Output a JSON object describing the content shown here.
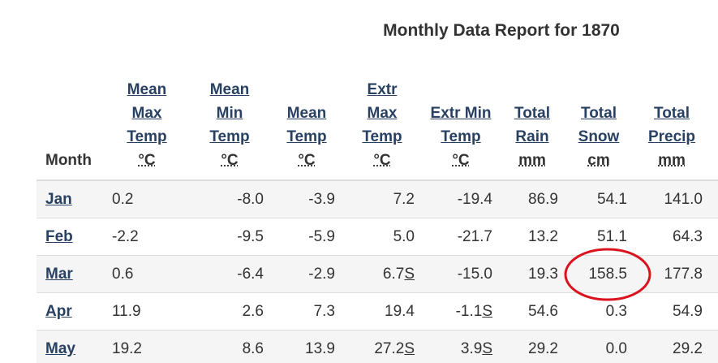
{
  "title": "Monthly Data Report for 1870",
  "table": {
    "headers": [
      {
        "label": "Month"
      },
      {
        "label": "Mean Max Temp",
        "unit": "°C"
      },
      {
        "label": "Mean Min Temp",
        "unit": "°C"
      },
      {
        "label": "Mean Temp",
        "unit": "°C"
      },
      {
        "label": "Extr Max Temp",
        "unit": "°C"
      },
      {
        "label": "Extr Min Temp",
        "unit": "°C"
      },
      {
        "label": "Total Rain",
        "unit": "mm"
      },
      {
        "label": "Total Snow",
        "unit": "cm"
      },
      {
        "label": "Total Precip",
        "unit": "mm"
      }
    ],
    "rows": [
      {
        "month": "Jan",
        "cells": [
          {
            "value": "0.2"
          },
          {
            "value": "-8.0"
          },
          {
            "value": "-3.9"
          },
          {
            "value": "7.2"
          },
          {
            "value": "-19.4"
          },
          {
            "value": "86.9"
          },
          {
            "value": "54.1"
          },
          {
            "value": "141.0"
          }
        ]
      },
      {
        "month": "Feb",
        "cells": [
          {
            "value": "-2.2"
          },
          {
            "value": "-9.5"
          },
          {
            "value": "-5.9"
          },
          {
            "value": "5.0"
          },
          {
            "value": "-21.7"
          },
          {
            "value": "13.2"
          },
          {
            "value": "51.1"
          },
          {
            "value": "64.3"
          }
        ]
      },
      {
        "month": "Mar",
        "cells": [
          {
            "value": "0.6"
          },
          {
            "value": "-6.4"
          },
          {
            "value": "-2.9"
          },
          {
            "value": "6.7",
            "flag": "S"
          },
          {
            "value": "-15.0"
          },
          {
            "value": "19.3"
          },
          {
            "value": "158.5"
          },
          {
            "value": "177.8"
          }
        ]
      },
      {
        "month": "Apr",
        "cells": [
          {
            "value": "11.9"
          },
          {
            "value": "2.6"
          },
          {
            "value": "7.3"
          },
          {
            "value": "19.4"
          },
          {
            "value": "-1.1",
            "flag": "S"
          },
          {
            "value": "54.6"
          },
          {
            "value": "0.3"
          },
          {
            "value": "54.9"
          }
        ]
      },
      {
        "month": "May",
        "cells": [
          {
            "value": "19.2"
          },
          {
            "value": "8.6"
          },
          {
            "value": "13.9"
          },
          {
            "value": "27.2",
            "flag": "S"
          },
          {
            "value": "3.9",
            "flag": "S"
          },
          {
            "value": "29.2"
          },
          {
            "value": "0.0"
          },
          {
            "value": "29.2"
          }
        ]
      }
    ]
  }
}
